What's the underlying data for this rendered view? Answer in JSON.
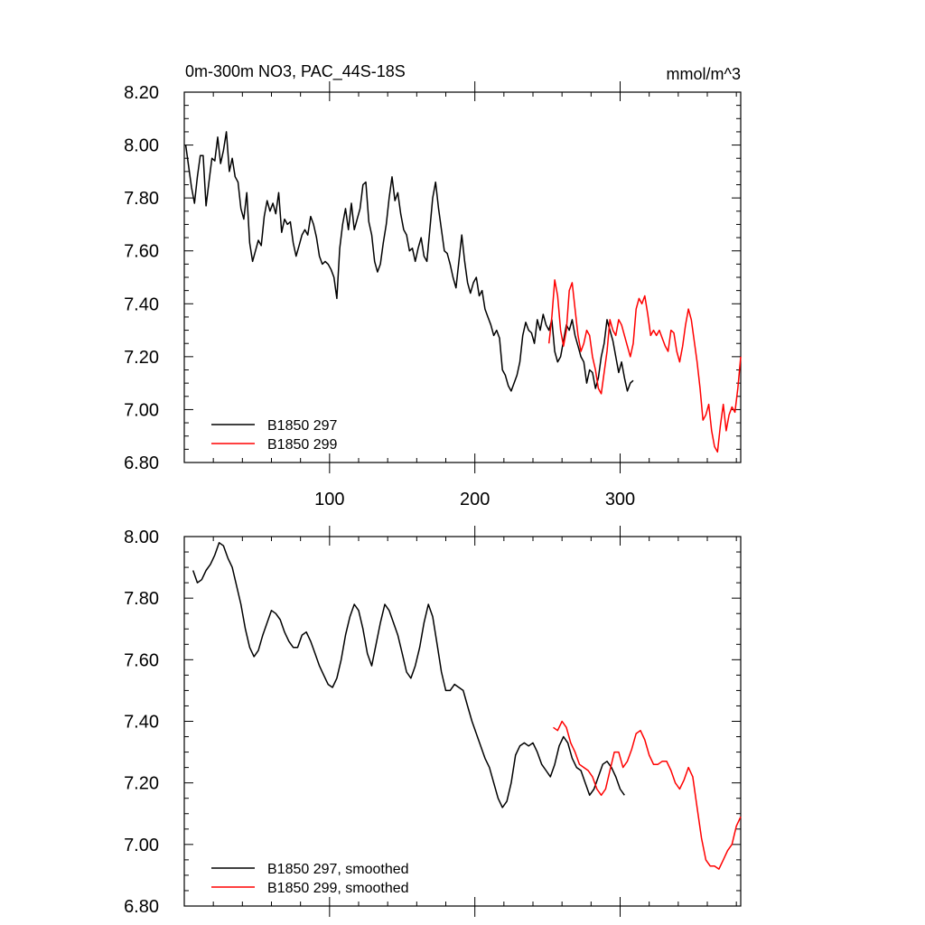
{
  "colors": {
    "run_297": "#000000",
    "run_299": "#ff0000",
    "axes": "#000000"
  },
  "chart_data": [
    {
      "type": "line",
      "title": "0m-300m NO3, PAC_44S-18S",
      "units": "mmol/m^3",
      "xlabel": "",
      "ylabel": "",
      "xlim": [
        0,
        383
      ],
      "ylim": [
        6.8,
        8.2
      ],
      "x_ticks": [
        100,
        200,
        300
      ],
      "x_tick_labels": [
        "100",
        "200",
        "300"
      ],
      "y_ticks": [
        6.8,
        7.0,
        7.2,
        7.4,
        7.6,
        7.8,
        8.0,
        8.2
      ],
      "y_tick_labels": [
        "6.80",
        "7.00",
        "7.20",
        "7.40",
        "7.60",
        "7.80",
        "8.00",
        "8.20"
      ],
      "legend_position": "bottom-left",
      "series": [
        {
          "name": "B1850 297",
          "color": "#000000",
          "x": [
            1,
            3,
            5,
            7,
            9,
            11,
            13,
            15,
            17,
            19,
            21,
            23,
            25,
            27,
            29,
            31,
            33,
            35,
            37,
            39,
            41,
            43,
            45,
            47,
            49,
            51,
            53,
            55,
            57,
            59,
            61,
            63,
            65,
            67,
            69,
            71,
            73,
            75,
            77,
            79,
            81,
            83,
            85,
            87,
            89,
            91,
            93,
            95,
            97,
            99,
            101,
            103,
            105,
            107,
            109,
            111,
            113,
            115,
            117,
            119,
            121,
            123,
            125,
            127,
            129,
            131,
            133,
            135,
            137,
            139,
            141,
            143,
            145,
            147,
            149,
            151,
            153,
            155,
            157,
            159,
            161,
            163,
            165,
            167,
            169,
            171,
            173,
            175,
            177,
            179,
            181,
            183,
            185,
            187,
            189,
            191,
            193,
            195,
            197,
            199,
            201,
            203,
            205,
            207,
            209,
            211,
            213,
            215,
            217,
            219,
            221,
            223,
            225,
            227,
            229,
            231,
            233,
            235,
            237,
            239,
            241,
            243,
            245,
            247,
            249,
            251,
            253,
            255,
            257,
            259,
            261,
            263,
            265,
            267,
            269,
            271,
            273,
            275,
            277,
            279,
            281,
            283,
            285,
            287,
            289,
            291,
            293,
            295,
            297,
            299,
            301,
            303,
            305,
            307,
            309
          ],
          "y": [
            8.0,
            7.92,
            7.84,
            7.78,
            7.88,
            7.96,
            7.96,
            7.77,
            7.86,
            7.95,
            7.94,
            8.03,
            7.93,
            7.98,
            8.05,
            7.9,
            7.95,
            7.88,
            7.86,
            7.76,
            7.72,
            7.82,
            7.63,
            7.56,
            7.6,
            7.64,
            7.62,
            7.73,
            7.79,
            7.75,
            7.78,
            7.74,
            7.82,
            7.67,
            7.72,
            7.7,
            7.71,
            7.63,
            7.58,
            7.62,
            7.66,
            7.68,
            7.66,
            7.73,
            7.7,
            7.65,
            7.58,
            7.55,
            7.56,
            7.55,
            7.53,
            7.5,
            7.42,
            7.61,
            7.7,
            7.76,
            7.68,
            7.78,
            7.68,
            7.72,
            7.76,
            7.85,
            7.86,
            7.71,
            7.66,
            7.56,
            7.52,
            7.55,
            7.63,
            7.7,
            7.8,
            7.88,
            7.79,
            7.82,
            7.74,
            7.68,
            7.66,
            7.6,
            7.61,
            7.56,
            7.61,
            7.65,
            7.58,
            7.56,
            7.68,
            7.8,
            7.86,
            7.76,
            7.68,
            7.6,
            7.59,
            7.55,
            7.5,
            7.46,
            7.56,
            7.66,
            7.56,
            7.48,
            7.44,
            7.48,
            7.5,
            7.43,
            7.45,
            7.38,
            7.35,
            7.32,
            7.28,
            7.3,
            7.27,
            7.15,
            7.13,
            7.09,
            7.07,
            7.1,
            7.13,
            7.18,
            7.28,
            7.33,
            7.3,
            7.29,
            7.25,
            7.34,
            7.3,
            7.36,
            7.32,
            7.3,
            7.34,
            7.22,
            7.18,
            7.2,
            7.26,
            7.32,
            7.3,
            7.34,
            7.28,
            7.24,
            7.2,
            7.18,
            7.1,
            7.15,
            7.14,
            7.08,
            7.12,
            7.2,
            7.25,
            7.34,
            7.3,
            7.26,
            7.2,
            7.14,
            7.18,
            7.12,
            7.07,
            7.1,
            7.11
          ]
        },
        {
          "name": "B1850 299",
          "color": "#ff0000",
          "x": [
            251,
            253,
            255,
            257,
            259,
            261,
            263,
            265,
            267,
            269,
            271,
            273,
            275,
            277,
            279,
            281,
            283,
            285,
            287,
            289,
            291,
            293,
            295,
            297,
            299,
            301,
            303,
            305,
            307,
            309,
            311,
            313,
            315,
            317,
            319,
            321,
            323,
            325,
            327,
            329,
            331,
            333,
            335,
            337,
            339,
            341,
            343,
            345,
            347,
            349,
            351,
            353,
            355,
            357,
            359,
            361,
            363,
            365,
            367,
            369,
            371,
            373,
            375,
            377,
            379,
            381,
            383
          ],
          "y": [
            7.25,
            7.35,
            7.49,
            7.43,
            7.3,
            7.24,
            7.3,
            7.45,
            7.48,
            7.38,
            7.28,
            7.22,
            7.25,
            7.3,
            7.28,
            7.2,
            7.15,
            7.08,
            7.06,
            7.14,
            7.22,
            7.34,
            7.3,
            7.28,
            7.34,
            7.32,
            7.28,
            7.24,
            7.2,
            7.25,
            7.38,
            7.42,
            7.4,
            7.43,
            7.36,
            7.28,
            7.3,
            7.28,
            7.3,
            7.27,
            7.24,
            7.22,
            7.3,
            7.29,
            7.22,
            7.18,
            7.24,
            7.32,
            7.38,
            7.34,
            7.26,
            7.18,
            7.08,
            6.96,
            6.98,
            7.02,
            6.92,
            6.86,
            6.84,
            6.94,
            7.02,
            6.92,
            6.98,
            7.01,
            6.99,
            7.08,
            7.2
          ]
        }
      ]
    },
    {
      "type": "line",
      "title": "",
      "xlabel": "",
      "ylabel": "",
      "xlim": [
        0,
        383
      ],
      "ylim": [
        6.8,
        8.0
      ],
      "x_ticks": [
        100,
        200,
        300
      ],
      "y_ticks": [
        6.8,
        7.0,
        7.2,
        7.4,
        7.6,
        7.8,
        8.0
      ],
      "y_tick_labels": [
        "6.80",
        "7.00",
        "7.20",
        "7.40",
        "7.60",
        "7.80",
        "8.00"
      ],
      "legend_position": "bottom-left",
      "series": [
        {
          "name": "B1850 297, smoothed",
          "color": "#000000",
          "x": [
            6,
            9,
            12,
            15,
            18,
            21,
            24,
            27,
            30,
            33,
            36,
            39,
            42,
            45,
            48,
            51,
            54,
            57,
            60,
            63,
            66,
            69,
            72,
            75,
            78,
            81,
            84,
            87,
            90,
            93,
            96,
            99,
            102,
            105,
            108,
            111,
            114,
            117,
            120,
            123,
            126,
            129,
            132,
            135,
            138,
            141,
            144,
            147,
            150,
            153,
            156,
            159,
            162,
            165,
            168,
            171,
            174,
            177,
            180,
            183,
            186,
            189,
            192,
            195,
            198,
            201,
            204,
            207,
            210,
            213,
            216,
            219,
            222,
            225,
            228,
            231,
            234,
            237,
            240,
            243,
            246,
            249,
            252,
            255,
            258,
            261,
            264,
            267,
            270,
            273,
            276,
            279,
            282,
            285,
            288,
            291,
            294,
            297,
            300,
            303
          ],
          "y": [
            7.89,
            7.85,
            7.86,
            7.89,
            7.91,
            7.94,
            7.98,
            7.97,
            7.93,
            7.9,
            7.84,
            7.78,
            7.7,
            7.64,
            7.61,
            7.63,
            7.68,
            7.72,
            7.76,
            7.75,
            7.73,
            7.69,
            7.66,
            7.64,
            7.64,
            7.68,
            7.69,
            7.66,
            7.62,
            7.58,
            7.55,
            7.52,
            7.51,
            7.54,
            7.6,
            7.68,
            7.74,
            7.78,
            7.76,
            7.7,
            7.62,
            7.58,
            7.65,
            7.72,
            7.78,
            7.76,
            7.72,
            7.68,
            7.62,
            7.56,
            7.54,
            7.58,
            7.64,
            7.72,
            7.78,
            7.74,
            7.65,
            7.56,
            7.5,
            7.5,
            7.52,
            7.51,
            7.5,
            7.45,
            7.4,
            7.36,
            7.32,
            7.28,
            7.25,
            7.2,
            7.15,
            7.12,
            7.14,
            7.2,
            7.29,
            7.32,
            7.33,
            7.32,
            7.33,
            7.3,
            7.26,
            7.24,
            7.22,
            7.26,
            7.32,
            7.35,
            7.33,
            7.28,
            7.25,
            7.24,
            7.2,
            7.16,
            7.18,
            7.22,
            7.26,
            7.27,
            7.25,
            7.22,
            7.18,
            7.16
          ]
        },
        {
          "name": "B1850 299, smoothed",
          "color": "#ff0000",
          "x": [
            254,
            257,
            260,
            263,
            266,
            269,
            272,
            275,
            278,
            281,
            284,
            287,
            290,
            293,
            296,
            299,
            302,
            305,
            308,
            311,
            314,
            317,
            320,
            323,
            326,
            329,
            332,
            335,
            338,
            341,
            344,
            347,
            350,
            353,
            356,
            359,
            362,
            365,
            368,
            371,
            374,
            377,
            380,
            383
          ],
          "y": [
            7.38,
            7.37,
            7.4,
            7.38,
            7.33,
            7.3,
            7.26,
            7.25,
            7.24,
            7.22,
            7.18,
            7.16,
            7.18,
            7.24,
            7.3,
            7.3,
            7.25,
            7.27,
            7.31,
            7.36,
            7.37,
            7.34,
            7.29,
            7.26,
            7.26,
            7.27,
            7.27,
            7.24,
            7.2,
            7.18,
            7.21,
            7.25,
            7.22,
            7.12,
            7.02,
            6.95,
            6.93,
            6.93,
            6.92,
            6.95,
            6.98,
            7.0,
            7.06,
            7.09
          ]
        }
      ]
    }
  ]
}
